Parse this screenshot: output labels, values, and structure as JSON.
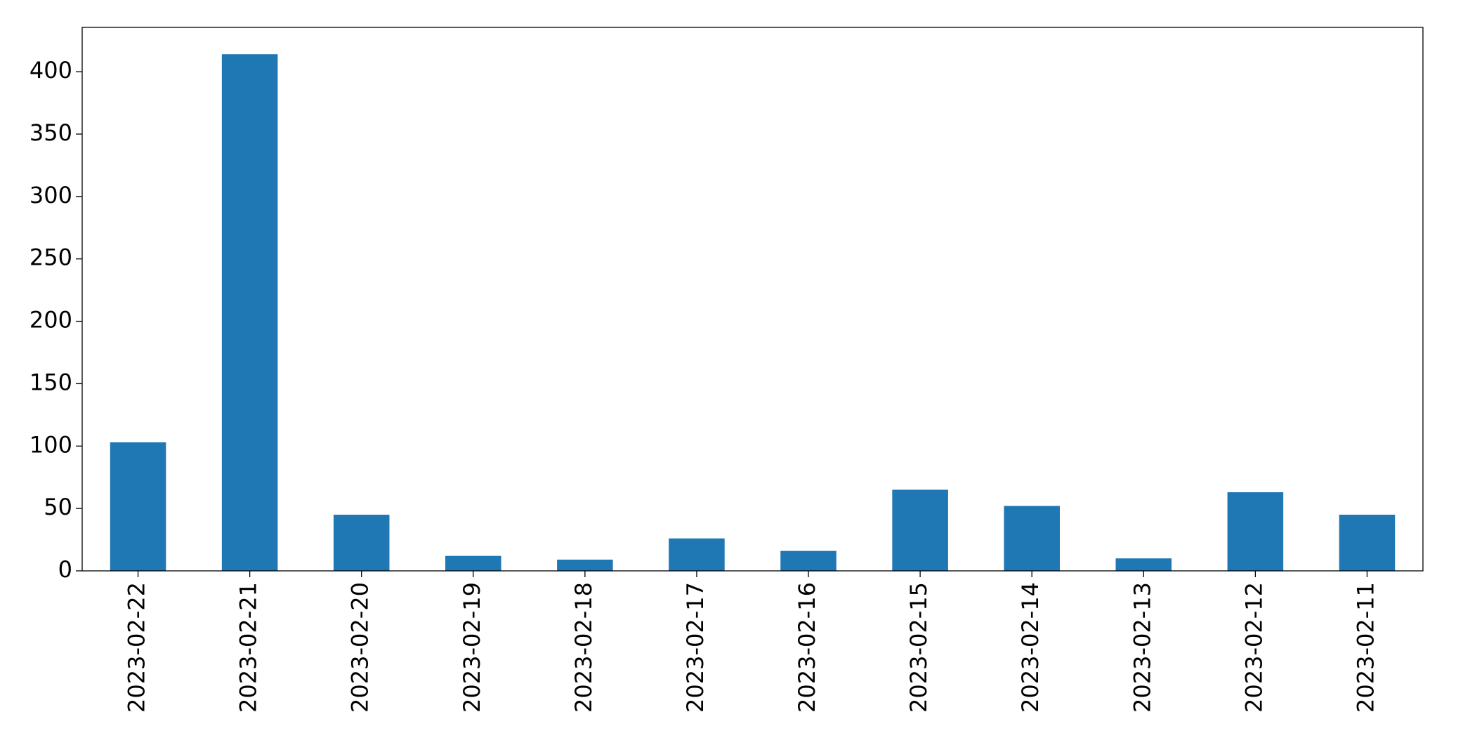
{
  "chart_data": {
    "type": "bar",
    "categories": [
      "2023-02-22",
      "2023-02-21",
      "2023-02-20",
      "2023-02-19",
      "2023-02-18",
      "2023-02-17",
      "2023-02-16",
      "2023-02-15",
      "2023-02-14",
      "2023-02-13",
      "2023-02-12",
      "2023-02-11"
    ],
    "values": [
      103,
      414,
      45,
      12,
      9,
      26,
      16,
      65,
      52,
      10,
      63,
      45
    ],
    "color": "#1f77b4",
    "ylim": [
      0,
      435.5
    ],
    "yticks": [
      0,
      50,
      100,
      150,
      200,
      250,
      300,
      350,
      400
    ],
    "grid": false
  }
}
